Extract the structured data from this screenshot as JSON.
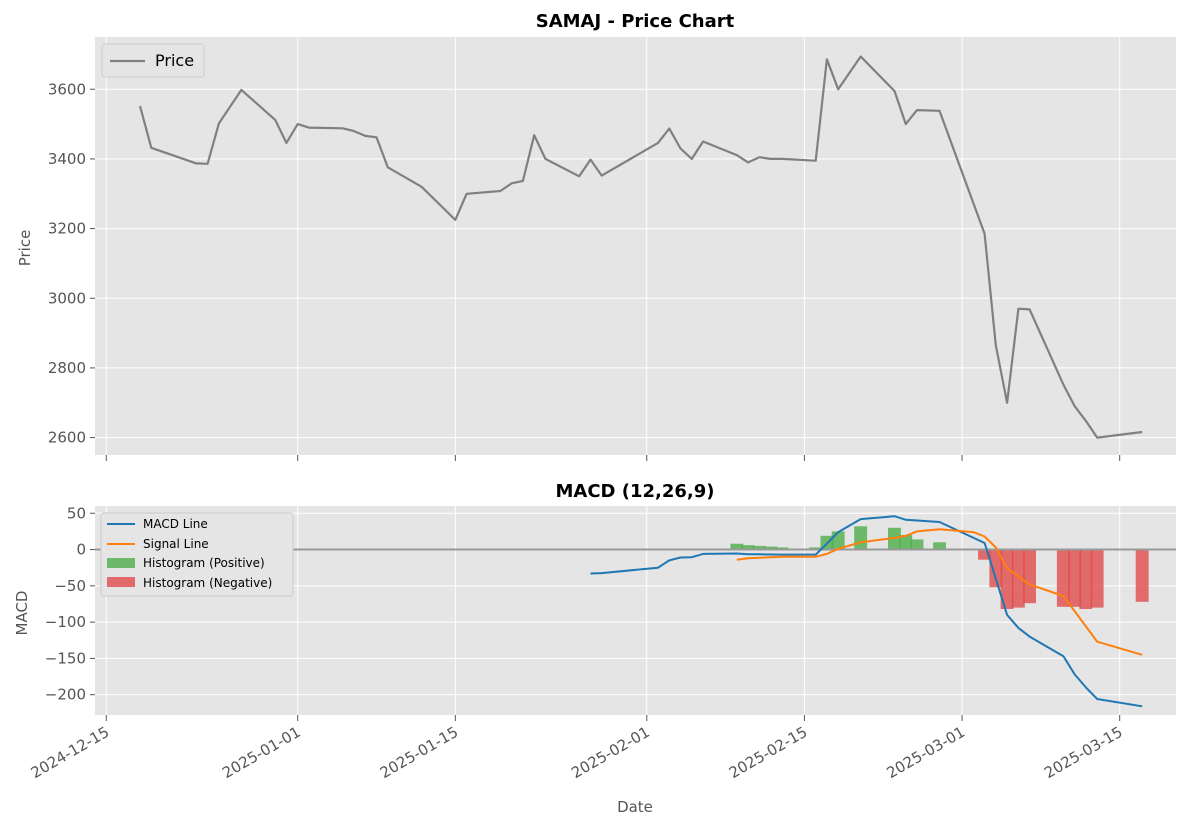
{
  "chart_data": [
    {
      "type": "line",
      "title": "SAMAJ - Price Chart",
      "xlabel": "",
      "ylabel": "Price",
      "ylim": [
        2550,
        3750
      ],
      "yticks": [
        2600,
        2800,
        3000,
        3200,
        3400,
        3600
      ],
      "grid": true,
      "legend_position": "top-left",
      "series": [
        {
          "name": "Price",
          "color": "#808080",
          "points": [
            [
              "2024-12-18",
              3552
            ],
            [
              "2024-12-19",
              3432
            ],
            [
              "2024-12-23",
              3387
            ],
            [
              "2024-12-24",
              3386
            ],
            [
              "2024-12-25",
              3502
            ],
            [
              "2024-12-27",
              3598
            ],
            [
              "2024-12-30",
              3512
            ],
            [
              "2024-12-31",
              3446
            ],
            [
              "2025-01-01",
              3500
            ],
            [
              "2025-01-02",
              3490
            ],
            [
              "2025-01-05",
              3488
            ],
            [
              "2025-01-06",
              3480
            ],
            [
              "2025-01-07",
              3466
            ],
            [
              "2025-01-08",
              3462
            ],
            [
              "2025-01-09",
              3376
            ],
            [
              "2025-01-12",
              3320
            ],
            [
              "2025-01-15",
              3225
            ],
            [
              "2025-01-16",
              3300
            ],
            [
              "2025-01-19",
              3308
            ],
            [
              "2025-01-20",
              3330
            ],
            [
              "2025-01-21",
              3337
            ],
            [
              "2025-01-22",
              3468
            ],
            [
              "2025-01-23",
              3400
            ],
            [
              "2025-01-26",
              3350
            ],
            [
              "2025-01-27",
              3398
            ],
            [
              "2025-01-28",
              3352
            ],
            [
              "2025-02-02",
              3446
            ],
            [
              "2025-02-03",
              3487
            ],
            [
              "2025-02-04",
              3430
            ],
            [
              "2025-02-05",
              3400
            ],
            [
              "2025-02-06",
              3450
            ],
            [
              "2025-02-09",
              3411
            ],
            [
              "2025-02-10",
              3390
            ],
            [
              "2025-02-11",
              3405
            ],
            [
              "2025-02-12",
              3400
            ],
            [
              "2025-02-13",
              3400
            ],
            [
              "2025-02-16",
              3395
            ],
            [
              "2025-02-17",
              3686
            ],
            [
              "2025-02-18",
              3600
            ],
            [
              "2025-02-20",
              3694
            ],
            [
              "2025-02-23",
              3595
            ],
            [
              "2025-02-24",
              3500
            ],
            [
              "2025-02-25",
              3540
            ],
            [
              "2025-02-27",
              3538
            ],
            [
              "2025-03-03",
              3185
            ],
            [
              "2025-03-04",
              2865
            ],
            [
              "2025-03-05",
              2700
            ],
            [
              "2025-03-06",
              2970
            ],
            [
              "2025-03-07",
              2968
            ],
            [
              "2025-03-10",
              2752
            ],
            [
              "2025-03-11",
              2690
            ],
            [
              "2025-03-12",
              2648
            ],
            [
              "2025-03-13",
              2600
            ],
            [
              "2025-03-17",
              2616
            ]
          ]
        }
      ]
    },
    {
      "type": "line",
      "title": "MACD (12,26,9)",
      "xlabel": "Date",
      "ylabel": "MACD",
      "ylim": [
        -228,
        60
      ],
      "yticks": [
        50,
        0,
        -50,
        -100,
        -150,
        -200
      ],
      "xlim": [
        "2024-12-14",
        "2025-03-20"
      ],
      "xticks": [
        "2024-12-15",
        "2025-01-01",
        "2025-01-15",
        "2025-02-01",
        "2025-02-15",
        "2025-03-01",
        "2025-03-15"
      ],
      "grid": true,
      "zero_line": true,
      "legend_position": "top-left",
      "series": [
        {
          "name": "MACD Line",
          "color": "#1f77b4",
          "points": [
            [
              "2025-01-27",
              -33
            ],
            [
              "2025-01-28",
              -32.5
            ],
            [
              "2025-02-02",
              -25
            ],
            [
              "2025-02-03",
              -15
            ],
            [
              "2025-02-04",
              -11
            ],
            [
              "2025-02-05",
              -10.5
            ],
            [
              "2025-02-06",
              -6
            ],
            [
              "2025-02-09",
              -5.5
            ],
            [
              "2025-02-10",
              -6.5
            ],
            [
              "2025-02-11",
              -6.5
            ],
            [
              "2025-02-13",
              -7
            ],
            [
              "2025-02-16",
              -7
            ],
            [
              "2025-02-17",
              8
            ],
            [
              "2025-02-18",
              24
            ],
            [
              "2025-02-20",
              42
            ],
            [
              "2025-02-23",
              46
            ],
            [
              "2025-02-24",
              41
            ],
            [
              "2025-02-27",
              38
            ],
            [
              "2025-03-03",
              9
            ],
            [
              "2025-03-04",
              -40
            ],
            [
              "2025-03-05",
              -90
            ],
            [
              "2025-03-06",
              -108
            ],
            [
              "2025-03-07",
              -120
            ],
            [
              "2025-03-10",
              -147
            ],
            [
              "2025-03-11",
              -172
            ],
            [
              "2025-03-12",
              -190
            ],
            [
              "2025-03-13",
              -206
            ],
            [
              "2025-03-17",
              -216
            ]
          ]
        },
        {
          "name": "Signal Line",
          "color": "#ff7f0e",
          "points": [
            [
              "2025-02-09",
              -14
            ],
            [
              "2025-02-10",
              -12
            ],
            [
              "2025-02-13",
              -10
            ],
            [
              "2025-02-16",
              -10
            ],
            [
              "2025-02-17",
              -6
            ],
            [
              "2025-02-18",
              1
            ],
            [
              "2025-02-20",
              10
            ],
            [
              "2025-02-23",
              16
            ],
            [
              "2025-02-24",
              19
            ],
            [
              "2025-02-25",
              25
            ],
            [
              "2025-02-27",
              28
            ],
            [
              "2025-03-02",
              24
            ],
            [
              "2025-03-03",
              18
            ],
            [
              "2025-03-04",
              3
            ],
            [
              "2025-03-05",
              -26
            ],
            [
              "2025-03-07",
              -48
            ],
            [
              "2025-03-10",
              -64
            ],
            [
              "2025-03-13",
              -127
            ],
            [
              "2025-03-17",
              -145
            ]
          ]
        }
      ],
      "histogram": [
        {
          "name": "Histogram (Positive)",
          "color": "#4daf4a"
        },
        {
          "name": "Histogram (Negative)",
          "color": "#e04b4b"
        }
      ],
      "histogram_bars": [
        [
          "2025-02-09",
          8
        ],
        [
          "2025-02-10",
          6
        ],
        [
          "2025-02-11",
          5
        ],
        [
          "2025-02-12",
          4
        ],
        [
          "2025-02-13",
          3
        ],
        [
          "2025-02-16",
          3
        ],
        [
          "2025-02-17",
          19
        ],
        [
          "2025-02-18",
          25
        ],
        [
          "2025-02-20",
          32
        ],
        [
          "2025-02-23",
          30
        ],
        [
          "2025-02-24",
          20
        ],
        [
          "2025-02-25",
          14
        ],
        [
          "2025-02-27",
          10
        ],
        [
          "2025-03-03",
          -14
        ],
        [
          "2025-03-04",
          -52
        ],
        [
          "2025-03-05",
          -82
        ],
        [
          "2025-03-06",
          -80
        ],
        [
          "2025-03-07",
          -74
        ],
        [
          "2025-03-10",
          -79
        ],
        [
          "2025-03-11",
          -79
        ],
        [
          "2025-03-12",
          -82
        ],
        [
          "2025-03-13",
          -80
        ],
        [
          "2025-03-17",
          -72
        ]
      ]
    }
  ]
}
